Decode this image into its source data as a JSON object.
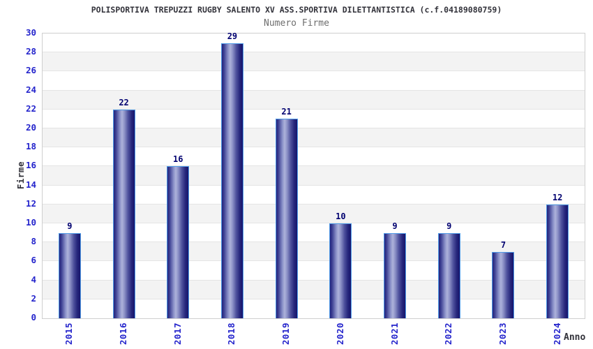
{
  "chart_data": {
    "type": "bar",
    "title": "POLISPORTIVA TREPUZZI RUGBY SALENTO XV ASS.SPORTIVA DILETTANTISTICA (c.f.04189080759)",
    "subtitle": "Numero Firme",
    "xlabel": "Anno",
    "ylabel": "Firme",
    "categories": [
      "2015",
      "2016",
      "2017",
      "2018",
      "2019",
      "2020",
      "2021",
      "2022",
      "2023",
      "2024"
    ],
    "values": [
      9,
      22,
      16,
      29,
      21,
      10,
      9,
      9,
      7,
      12
    ],
    "ylim": [
      0,
      30
    ],
    "ytick_step": 2,
    "legend": "none",
    "grid": "alternating horizontal bands with light gridlines",
    "colors": {
      "title_text": "#32323a",
      "subtitle_text": "#6e6e6e",
      "tick_label": "#2424cc",
      "value_label": "#000070",
      "bar_dark": "#24247c",
      "bar_highlight": "#adb2da",
      "bar_dark_right": "#16156c",
      "bar_border": "#4f9be8",
      "band_white": "#ffffff",
      "band_gray": "#f3f3f3",
      "gridline": "#e4e4e4",
      "plot_border": "#cfcfcf"
    }
  }
}
